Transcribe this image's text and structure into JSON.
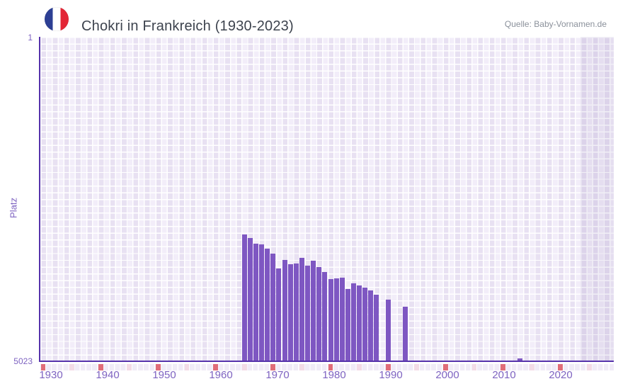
{
  "header": {
    "title": "Chokri in Frankreich (1930-2023)",
    "source": "Quelle: Baby-Vornamen.de",
    "flag_icon": "france-flag-icon"
  },
  "colors": {
    "bar": "#7e57c2",
    "axis_line": "#5633ab",
    "tick_text": "#7e63c1",
    "strip_decade": "#e06d79",
    "strip_half_decade": "#f3dbe6",
    "plot_bg": "#f1ecf8"
  },
  "chart_data": {
    "type": "bar",
    "title": "Chokri in Frankreich (1930-2023)",
    "xlabel": "",
    "ylabel": "Platz",
    "y_axis": {
      "top_label": "1",
      "bottom_label": "5023",
      "min": 1,
      "max": 5023,
      "inverted": true,
      "note": "rank 1 = top"
    },
    "x_axis": {
      "first_year": 1930,
      "last_year": 2023,
      "tick_years": [
        1930,
        1940,
        1950,
        1960,
        1970,
        1980,
        1990,
        2000,
        2010,
        2020
      ]
    },
    "legend": "none",
    "grid": "on",
    "no_data_band": {
      "from_year": 2024,
      "to_plot_edge": true
    },
    "marker_strip": {
      "start": 1930,
      "end": 2030,
      "step": 5,
      "decade_style": "red",
      "half_decade_style": "pink"
    },
    "series": [
      {
        "name": "Platz",
        "points": [
          {
            "year": 1965,
            "rank": 3065
          },
          {
            "year": 1966,
            "rank": 3120
          },
          {
            "year": 1967,
            "rank": 3200
          },
          {
            "year": 1968,
            "rank": 3215
          },
          {
            "year": 1969,
            "rank": 3280
          },
          {
            "year": 1970,
            "rank": 3360
          },
          {
            "year": 1971,
            "rank": 3585
          },
          {
            "year": 1972,
            "rank": 3460
          },
          {
            "year": 1973,
            "rank": 3520
          },
          {
            "year": 1974,
            "rank": 3510
          },
          {
            "year": 1975,
            "rank": 3420
          },
          {
            "year": 1976,
            "rank": 3540
          },
          {
            "year": 1977,
            "rank": 3470
          },
          {
            "year": 1978,
            "rank": 3565
          },
          {
            "year": 1979,
            "rank": 3640
          },
          {
            "year": 1980,
            "rank": 3755
          },
          {
            "year": 1981,
            "rank": 3740
          },
          {
            "year": 1982,
            "rank": 3730
          },
          {
            "year": 1983,
            "rank": 3910
          },
          {
            "year": 1984,
            "rank": 3815
          },
          {
            "year": 1985,
            "rank": 3855
          },
          {
            "year": 1986,
            "rank": 3880
          },
          {
            "year": 1987,
            "rank": 3925
          },
          {
            "year": 1988,
            "rank": 3995
          },
          {
            "year": 1990,
            "rank": 4065
          },
          {
            "year": 1993,
            "rank": 4175
          },
          {
            "year": 2013,
            "rank": 4980
          }
        ]
      }
    ]
  }
}
